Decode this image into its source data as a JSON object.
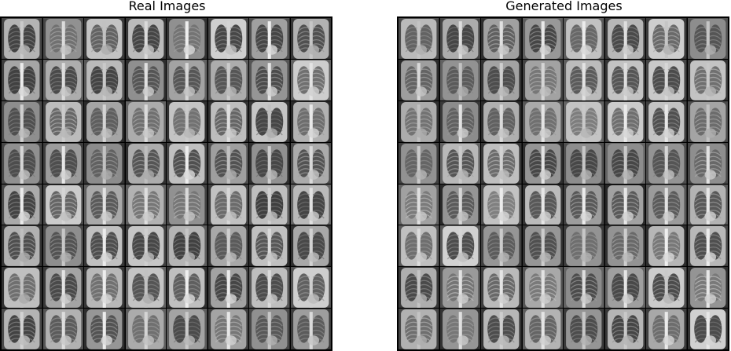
{
  "panels": [
    {
      "title": "Real Images",
      "kind": "real"
    },
    {
      "title": "Generated Images",
      "kind": "generated"
    }
  ],
  "grid": {
    "rows": 8,
    "cols": 8,
    "content": "chest-xray-thumbnail"
  }
}
